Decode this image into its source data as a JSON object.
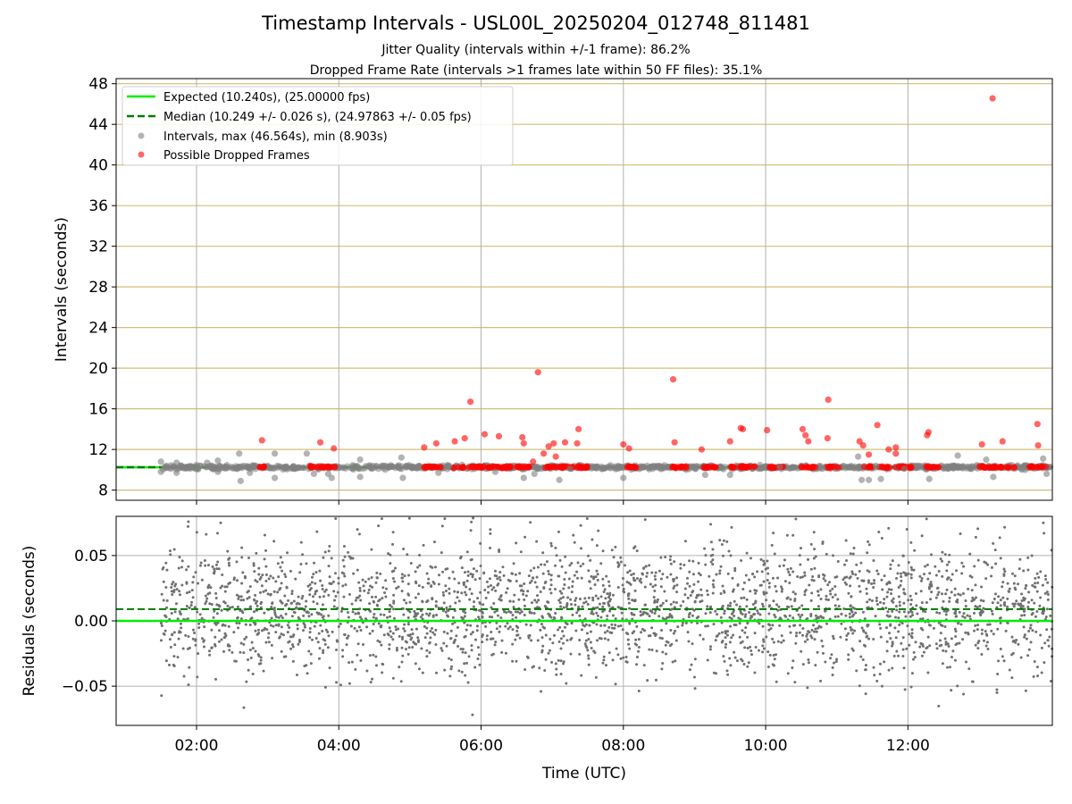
{
  "chart_data": [
    {
      "type": "scatter",
      "title": "Timestamp Intervals - USL00L_20250204_012748_811481",
      "subtitle_lines": [
        "Jitter Quality (intervals within +/-1 frame): 86.2%",
        "Dropped Frame Rate (intervals >1 frames late within 50 FF files): 35.1%"
      ],
      "xlabel": "",
      "ylabel": "Intervals (seconds)",
      "xlim": [
        0.87,
        14.03
      ],
      "ylim": [
        7.0,
        48.5
      ],
      "yticks": [
        8,
        12,
        16,
        20,
        24,
        28,
        32,
        36,
        40,
        44,
        48
      ],
      "xticks": [
        2,
        4,
        6,
        8,
        10,
        12
      ],
      "grid": true,
      "legend_position": "top-left",
      "legend": [
        {
          "label": "Expected (10.240s), (25.00000 fps)",
          "style": "solid-line",
          "color": "#00ee00"
        },
        {
          "label": "Median (10.249 +/- 0.026 s), (24.97863 +/- 0.05 fps)",
          "style": "dashed-line",
          "color": "#007a00"
        },
        {
          "label": "Intervals, max (46.564s), min (8.903s)",
          "style": "marker",
          "color": "#808080"
        },
        {
          "label": "Possible Dropped Frames",
          "style": "marker",
          "color": "#ff0000"
        }
      ],
      "expected_interval": 10.24,
      "median_interval": 10.249,
      "intervals_max": 46.564,
      "intervals_min": 8.903,
      "dropped_frames": [
        [
          2.92,
          12.9
        ],
        [
          3.6,
          10.4
        ],
        [
          3.74,
          12.7
        ],
        [
          3.93,
          12.1
        ],
        [
          5.2,
          12.2
        ],
        [
          5.37,
          12.6
        ],
        [
          5.63,
          12.8
        ],
        [
          5.77,
          13.1
        ],
        [
          5.85,
          16.7
        ],
        [
          6.05,
          13.5
        ],
        [
          6.25,
          13.3
        ],
        [
          6.58,
          13.2
        ],
        [
          6.6,
          12.6
        ],
        [
          6.73,
          10.8
        ],
        [
          6.8,
          19.6
        ],
        [
          6.88,
          11.6
        ],
        [
          6.95,
          12.3
        ],
        [
          7.02,
          12.6
        ],
        [
          7.05,
          11.3
        ],
        [
          7.18,
          12.7
        ],
        [
          7.37,
          14.0
        ],
        [
          7.35,
          12.6
        ],
        [
          8.0,
          12.5
        ],
        [
          8.08,
          12.1
        ],
        [
          8.7,
          18.9
        ],
        [
          8.72,
          12.7
        ],
        [
          9.1,
          12.0
        ],
        [
          9.5,
          12.8
        ],
        [
          9.65,
          14.1
        ],
        [
          9.68,
          14.0
        ],
        [
          10.02,
          13.9
        ],
        [
          10.52,
          14.0
        ],
        [
          10.56,
          13.4
        ],
        [
          10.6,
          12.8
        ],
        [
          10.88,
          16.9
        ],
        [
          10.87,
          13.1
        ],
        [
          11.32,
          12.8
        ],
        [
          11.37,
          12.4
        ],
        [
          11.45,
          11.5
        ],
        [
          11.57,
          14.4
        ],
        [
          11.73,
          12.0
        ],
        [
          11.83,
          12.2
        ],
        [
          11.83,
          11.6
        ],
        [
          12.27,
          13.4
        ],
        [
          12.29,
          13.7
        ],
        [
          13.04,
          12.5
        ],
        [
          13.19,
          46.56
        ],
        [
          13.33,
          12.8
        ],
        [
          13.82,
          14.5
        ],
        [
          13.83,
          12.4
        ]
      ],
      "gray_outliers": [
        [
          1.5,
          10.8
        ],
        [
          1.5,
          9.8
        ],
        [
          1.72,
          10.7
        ],
        [
          1.72,
          9.7
        ],
        [
          2.15,
          10.7
        ],
        [
          2.3,
          10.9
        ],
        [
          2.3,
          9.8
        ],
        [
          2.6,
          11.6
        ],
        [
          2.62,
          8.9
        ],
        [
          2.75,
          9.7
        ],
        [
          3.1,
          11.6
        ],
        [
          3.1,
          9.2
        ],
        [
          3.55,
          11.6
        ],
        [
          3.65,
          9.6
        ],
        [
          3.85,
          9.6
        ],
        [
          3.9,
          9.2
        ],
        [
          4.3,
          11.0
        ],
        [
          4.3,
          9.3
        ],
        [
          4.65,
          10.4
        ],
        [
          4.88,
          11.2
        ],
        [
          4.9,
          9.2
        ],
        [
          5.4,
          9.7
        ],
        [
          5.55,
          10.4
        ],
        [
          6.2,
          9.8
        ],
        [
          6.6,
          9.2
        ],
        [
          6.75,
          9.6
        ],
        [
          7.1,
          9.0
        ],
        [
          7.25,
          10.1
        ],
        [
          8.0,
          9.2
        ],
        [
          8.4,
          10.3
        ],
        [
          9.15,
          9.5
        ],
        [
          9.5,
          9.5
        ],
        [
          10.2,
          10.3
        ],
        [
          10.8,
          10.1
        ],
        [
          11.3,
          11.3
        ],
        [
          11.35,
          9.0
        ],
        [
          11.45,
          9.0
        ],
        [
          11.55,
          10.4
        ],
        [
          11.62,
          9.1
        ],
        [
          11.95,
          10.1
        ],
        [
          12.3,
          9.1
        ],
        [
          12.65,
          10.4
        ],
        [
          12.7,
          11.4
        ],
        [
          13.1,
          11.0
        ],
        [
          13.2,
          9.3
        ],
        [
          13.65,
          10.0
        ],
        [
          13.9,
          11.1
        ],
        [
          13.95,
          9.6
        ]
      ]
    },
    {
      "type": "scatter",
      "xlabel": "Time (UTC)",
      "ylabel": "Residuals (seconds)",
      "xlim": [
        0.87,
        14.03
      ],
      "ylim": [
        -0.08,
        0.08
      ],
      "yticks": [
        -0.05,
        0.0,
        0.05
      ],
      "ytick_labels": [
        "−0.05",
        "0.00",
        "0.05"
      ],
      "xticks": [
        2,
        4,
        6,
        8,
        10,
        12
      ],
      "xtick_labels": [
        "02:00",
        "04:00",
        "06:00",
        "08:00",
        "10:00",
        "12:00"
      ],
      "grid": true,
      "expected_residual": 0.0,
      "median_residual": 0.009,
      "point_color": "#707070",
      "x_range_of_points": [
        1.5,
        14.03
      ],
      "residual_spread": 0.025
    }
  ],
  "colors": {
    "expected": "#00ee00",
    "median": "#007a00",
    "grid_y_top": "#d2bd75",
    "grid": "#b0b0b0",
    "dropped": "#ff0000",
    "interval": "#808080"
  }
}
